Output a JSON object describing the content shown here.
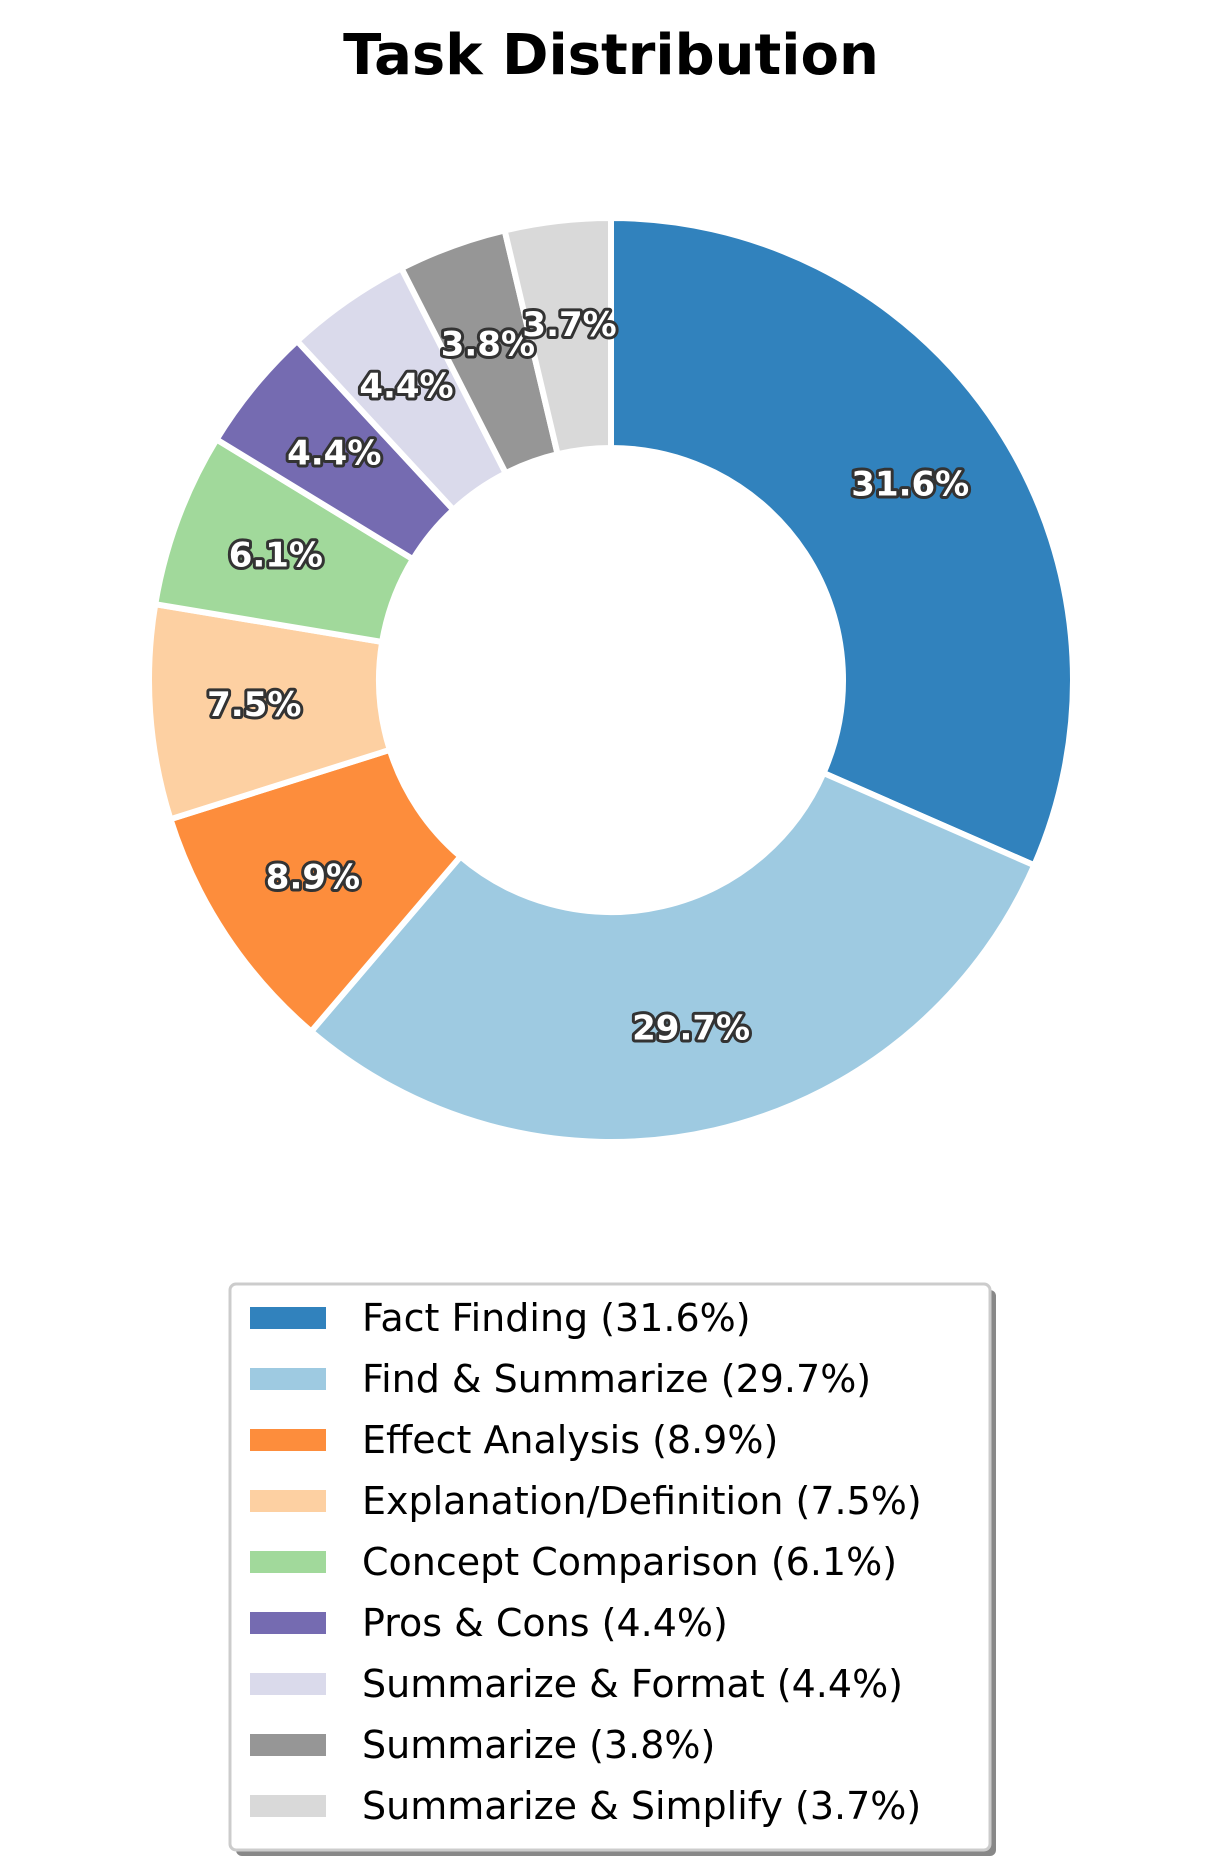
{
  "chart_data": {
    "type": "pie",
    "variant": "donut",
    "title": "Task Distribution",
    "categories": [
      "Fact Finding",
      "Find & Summarize",
      "Effect Analysis",
      "Explanation/Definition",
      "Concept Comparison",
      "Pros & Cons",
      "Summarize & Format",
      "Summarize",
      "Summarize & Simplify"
    ],
    "values": [
      31.6,
      29.7,
      8.9,
      7.5,
      6.1,
      4.4,
      4.4,
      3.8,
      3.7
    ],
    "slice_labels": [
      "31.6%",
      "29.7%",
      "8.9%",
      "7.5%",
      "6.1%",
      "4.4%",
      "4.4%",
      "3.8%",
      "3.7%"
    ],
    "legend_labels": [
      "Fact Finding (31.6%)",
      "Find & Summarize (29.7%)",
      "Effect Analysis (8.9%)",
      "Explanation/Definition (7.5%)",
      "Concept Comparison (6.1%)",
      "Pros & Cons (4.4%)",
      "Summarize & Format (4.4%)",
      "Summarize (3.8%)",
      "Summarize & Simplify (3.7%)"
    ],
    "colors": [
      "#3182bd",
      "#9ecae1",
      "#fd8d3c",
      "#fdd0a2",
      "#a1d99b",
      "#756bb1",
      "#dadaeb",
      "#969696",
      "#d9d9d9"
    ],
    "start_angle_deg": 90,
    "direction": "clockwise",
    "legend_position": "bottom-center"
  }
}
